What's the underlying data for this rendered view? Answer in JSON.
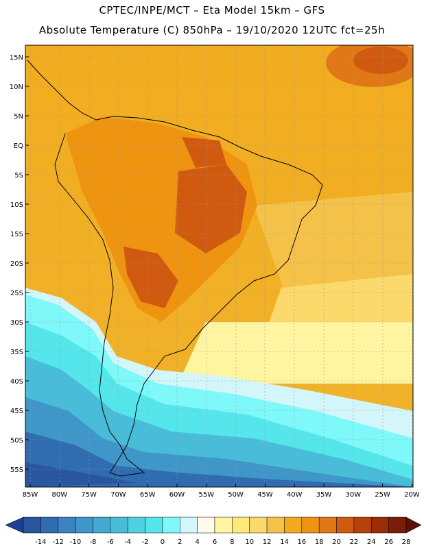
{
  "header": {
    "line1": "CPTEC/INPE/MCT –  Eta Model 15km – GFS",
    "line2": "Absolute Temperature (C) 850hPa – 19/10/2020 12UTC fct=25h"
  },
  "map": {
    "lat_labels": [
      "15N",
      "10N",
      "5N",
      "EQ",
      "5S",
      "10S",
      "15S",
      "20S",
      "25S",
      "30S",
      "35S",
      "40S",
      "45S",
      "50S",
      "55S"
    ],
    "lon_labels": [
      "85W",
      "80W",
      "75W",
      "70W",
      "65W",
      "60W",
      "55W",
      "50W",
      "45W",
      "40W",
      "35W",
      "30W",
      "25W",
      "20W"
    ]
  },
  "colorbar": {
    "tick_labels": [
      "-14",
      "-12",
      "-10",
      "-8",
      "-6",
      "-4",
      "-2",
      "0",
      "2",
      "4",
      "6",
      "8",
      "10",
      "12",
      "14",
      "16",
      "18",
      "20",
      "22",
      "24",
      "26",
      "28"
    ],
    "colors": [
      "#1f3f8f",
      "#2a56a0",
      "#2f6cb0",
      "#3b82c0",
      "#3f96c8",
      "#43a9d0",
      "#48bcd8",
      "#4dd2e4",
      "#55e6ec",
      "#7ff8fa",
      "#d2f6fa",
      "#fffbe8",
      "#fff5a0",
      "#ffe97a",
      "#fbd96a",
      "#f5c249",
      "#f2aa1c",
      "#ee9410",
      "#e07818",
      "#d05a10",
      "#b8400c",
      "#9a2c08",
      "#7a1c08",
      "#5a1008"
    ]
  }
}
